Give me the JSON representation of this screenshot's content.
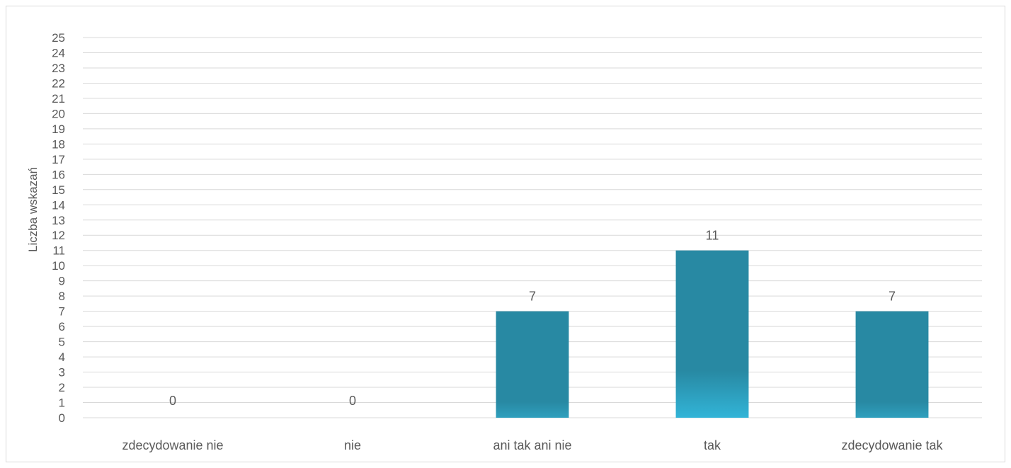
{
  "chart_data": {
    "type": "bar",
    "categories": [
      "zdecydowanie nie",
      "nie",
      "ani tak ani nie",
      "tak",
      "zdecydowanie tak"
    ],
    "values": [
      0,
      0,
      7,
      11,
      7
    ],
    "data_labels": [
      "0",
      "0",
      "7",
      "11",
      "7"
    ],
    "ylabel": "Liczba wskazań",
    "xlabel": "",
    "ylim": [
      0,
      25
    ],
    "ytick_step": 1,
    "grid": true,
    "legend": "none",
    "bar_color": "#2889a3",
    "bar_gradient_bottom": "#32b4d7",
    "data_label_color": "#595959",
    "grid_color": "#d9d9d9"
  }
}
